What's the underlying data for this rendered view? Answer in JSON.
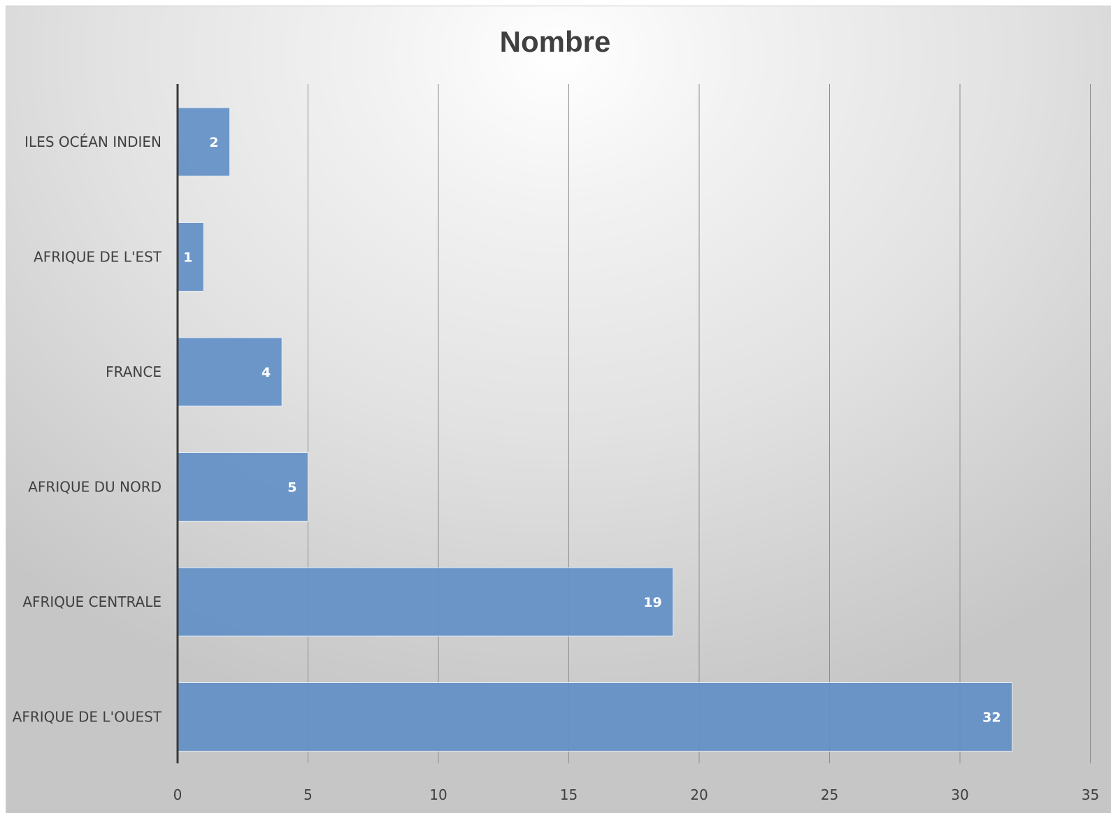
{
  "chart_data": {
    "type": "bar",
    "orientation": "horizontal",
    "title": "Nombre",
    "xlabel": "",
    "ylabel": "",
    "categories": [
      "ILES OCÉAN INDIEN",
      "AFRIQUE DE L'EST",
      "FRANCE",
      "AFRIQUE DU NORD",
      "AFRIQUE CENTRALE",
      "AFRIQUE DE L'OUEST"
    ],
    "values": [
      2,
      1,
      4,
      5,
      19,
      32
    ],
    "data_labels": [
      "2",
      "1",
      "4",
      "5",
      "19",
      "32"
    ],
    "xlim": [
      0,
      35
    ],
    "x_ticks": [
      0,
      5,
      10,
      15,
      20,
      25,
      30,
      35
    ],
    "x_tick_labels": [
      "0",
      "5",
      "10",
      "15",
      "20",
      "25",
      "30",
      "35"
    ],
    "grid": "vertical",
    "legend": "none",
    "bar_color": "#6390c6"
  }
}
